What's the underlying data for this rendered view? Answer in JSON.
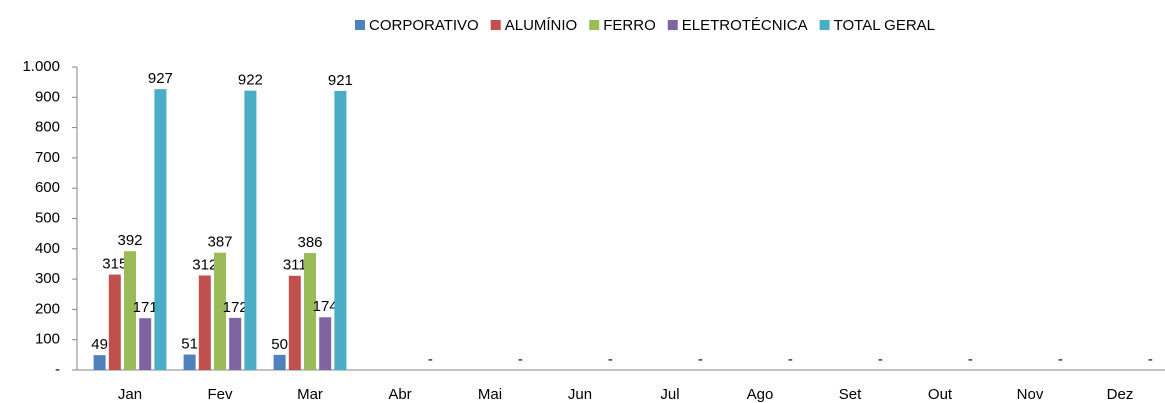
{
  "chart_data": {
    "type": "bar",
    "categories": [
      "Jan",
      "Fev",
      "Mar",
      "Abr",
      "Mai",
      "Jun",
      "Jul",
      "Ago",
      "Set",
      "Out",
      "Nov",
      "Dez"
    ],
    "series": [
      {
        "name": "CORPORATIVO",
        "color": "#4f81bd",
        "values": [
          49,
          51,
          50,
          null,
          null,
          null,
          null,
          null,
          null,
          null,
          null,
          null
        ]
      },
      {
        "name": "ALUMÍNIO",
        "color": "#c0504d",
        "values": [
          315,
          312,
          311,
          null,
          null,
          null,
          null,
          null,
          null,
          null,
          null,
          null
        ]
      },
      {
        "name": "FERRO",
        "color": "#9bbb59",
        "values": [
          392,
          387,
          386,
          null,
          null,
          null,
          null,
          null,
          null,
          null,
          null,
          null
        ]
      },
      {
        "name": "ELETROTÉCNICA",
        "color": "#8064a2",
        "values": [
          171,
          172,
          174,
          null,
          null,
          null,
          null,
          null,
          null,
          null,
          null,
          null
        ]
      },
      {
        "name": "TOTAL GERAL",
        "color": "#4bacc6",
        "values": [
          927,
          922,
          921,
          0,
          0,
          0,
          0,
          0,
          0,
          0,
          0,
          0
        ],
        "value_labels": [
          "927",
          "922",
          "921",
          "-",
          "-",
          "-",
          "-",
          "-",
          "-",
          "-",
          "-",
          "-"
        ]
      }
    ],
    "ylim": [
      0,
      1000
    ],
    "yticks": [
      {
        "value": 0,
        "label": "-"
      },
      100,
      200,
      300,
      400,
      500,
      600,
      700,
      800,
      900,
      {
        "value": 1000,
        "label": "1.000"
      }
    ],
    "legend": "top",
    "grid": false
  }
}
